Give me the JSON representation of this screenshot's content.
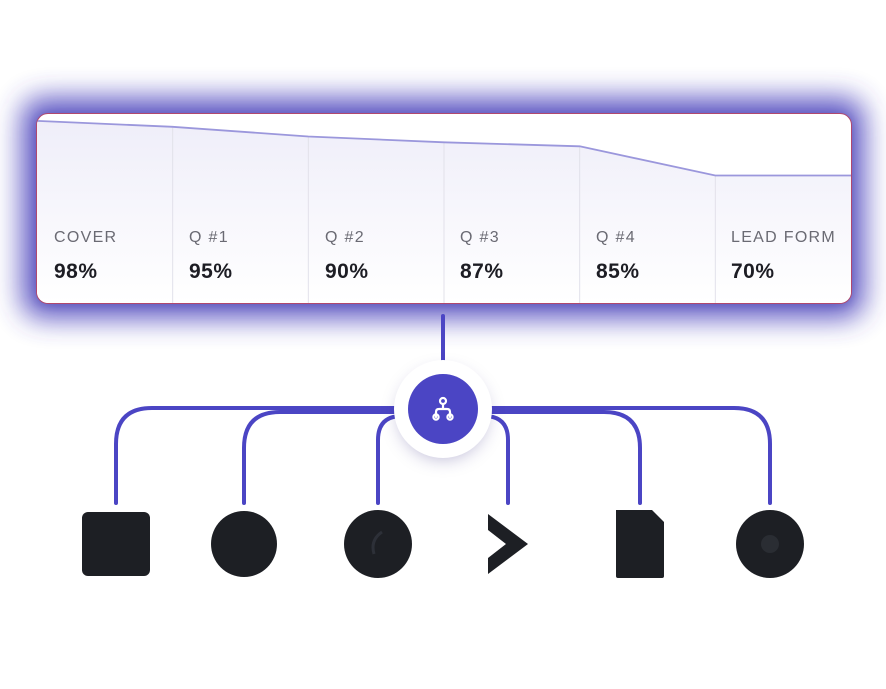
{
  "chart_data": {
    "type": "area",
    "categories": [
      "COVER",
      "Q #1",
      "Q #2",
      "Q #3",
      "Q #4",
      "LEAD FORM"
    ],
    "values": [
      98,
      95,
      90,
      87,
      85,
      70
    ],
    "value_labels": [
      "98%",
      "95%",
      "90%",
      "87%",
      "85%",
      "70%"
    ],
    "ylim": [
      0,
      100
    ],
    "grid": true,
    "legend": "none",
    "colors": {
      "line": "#9b97dc",
      "fill": "#efeef9",
      "border": "#b0486e",
      "accent": "#4b45c4"
    }
  },
  "hub": {
    "icon": "branch-icon",
    "color": "#4b45c4"
  },
  "destinations": [
    {
      "icon": "table-icon"
    },
    {
      "icon": "globe-icon"
    },
    {
      "icon": "sync-icon"
    },
    {
      "icon": "chevron-icon"
    },
    {
      "icon": "document-icon"
    },
    {
      "icon": "circle-icon"
    }
  ]
}
